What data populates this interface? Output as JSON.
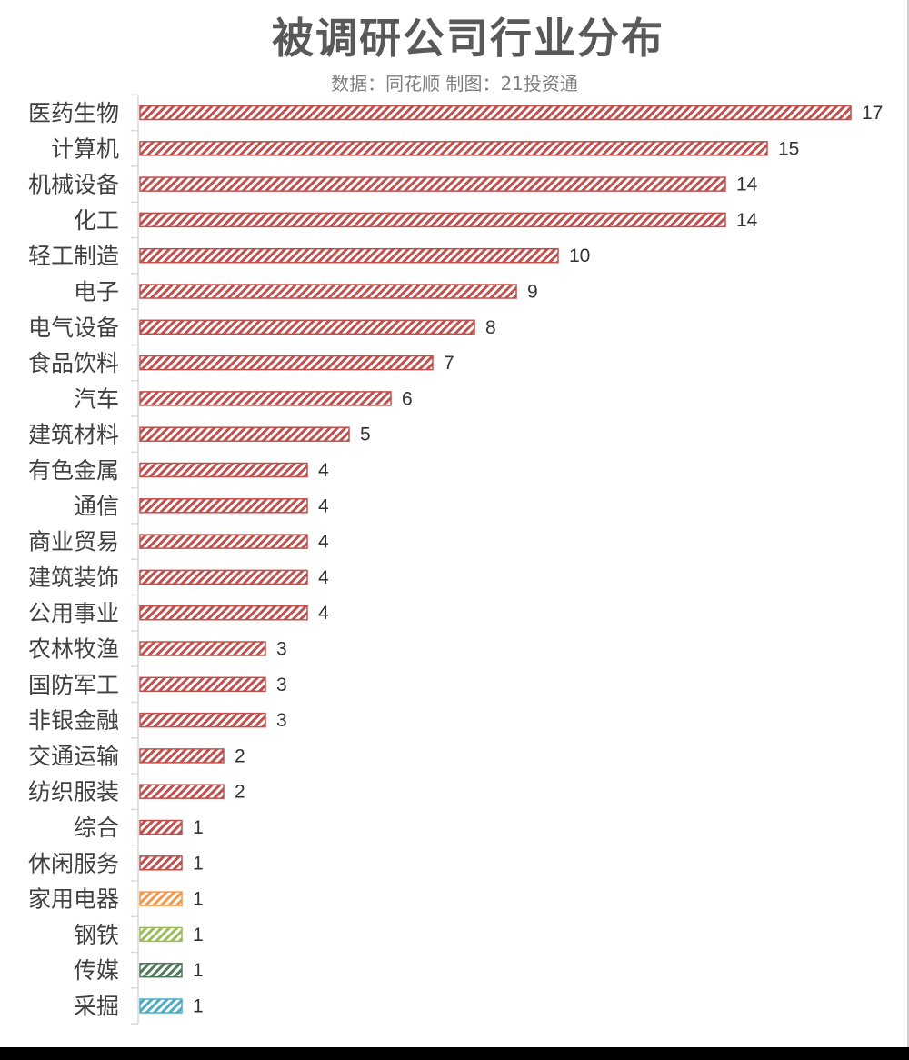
{
  "chart_data": {
    "type": "bar",
    "orientation": "horizontal",
    "title": "被调研公司行业分布",
    "subtitle": "数据：同花顺  制图：21投资通",
    "categories": [
      "医药生物",
      "计算机",
      "机械设备",
      "化工",
      "轻工制造",
      "电子",
      "电气设备",
      "食品饮料",
      "汽车",
      "建筑材料",
      "有色金属",
      "通信",
      "商业贸易",
      "建筑装饰",
      "公用事业",
      "农林牧渔",
      "国防军工",
      "非银金融",
      "交通运输",
      "纺织服装",
      "综合",
      "休闲服务",
      "家用电器",
      "钢铁",
      "传媒",
      "采掘"
    ],
    "values": [
      17,
      15,
      14,
      14,
      10,
      9,
      8,
      7,
      6,
      5,
      4,
      4,
      4,
      4,
      4,
      3,
      3,
      3,
      2,
      2,
      1,
      1,
      1,
      1,
      1,
      1
    ],
    "bar_colors": [
      "#c0504d",
      "#c0504d",
      "#c0504d",
      "#c0504d",
      "#c0504d",
      "#c0504d",
      "#c0504d",
      "#c0504d",
      "#c0504d",
      "#c0504d",
      "#c0504d",
      "#c0504d",
      "#c0504d",
      "#c0504d",
      "#c0504d",
      "#c0504d",
      "#c0504d",
      "#c0504d",
      "#c0504d",
      "#c0504d",
      "#c0504d",
      "#c0504d",
      "#f79646",
      "#9bbb59",
      "#4f7a5a",
      "#4bacc6"
    ],
    "fill_pattern": "diagonal-hatch",
    "xlim": [
      0,
      17
    ],
    "grid": false,
    "legend": "none",
    "data_labels": true
  }
}
